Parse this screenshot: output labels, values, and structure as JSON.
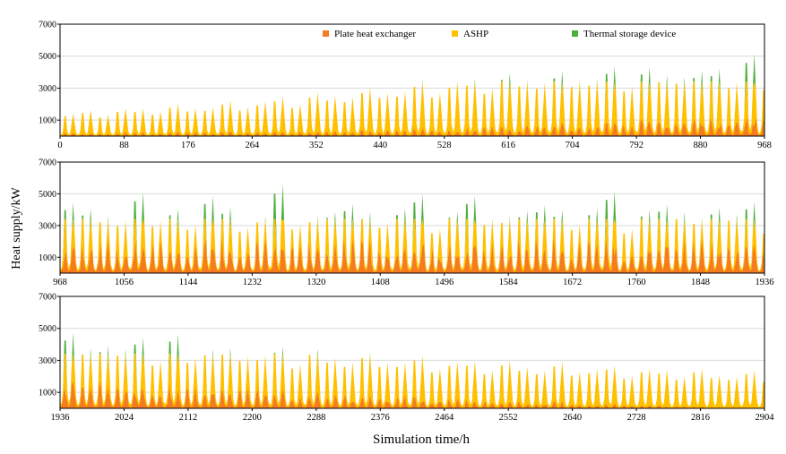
{
  "figure": {
    "ylabel": "Heat supply/kW",
    "xlabel": "Simulation time/h"
  },
  "legend": [
    {
      "label": "Plate heat exchanger",
      "color": "#f47b20"
    },
    {
      "label": "ASHP",
      "color": "#ffc000"
    },
    {
      "label": "Thermal storage device",
      "color": "#4caf3a"
    }
  ],
  "chart_data": [
    {
      "type": "area",
      "stacked": true,
      "grid": "horizontal",
      "legend_position": "top-right",
      "xlim": [
        0,
        968
      ],
      "ylim": [
        0,
        7000
      ],
      "xticks": [
        0,
        88,
        176,
        264,
        352,
        440,
        528,
        616,
        704,
        792,
        880,
        968
      ],
      "yticks": [
        1000,
        3000,
        5000,
        7000
      ],
      "day_length_h": 24,
      "series": [
        {
          "name": "Plate heat exchanger",
          "level": "low"
        },
        {
          "name": "ASHP",
          "cap": 3400,
          "daily_peak_start": 1600,
          "daily_peak_end": 3400
        },
        {
          "name": "Thermal storage device",
          "daily_peak_start": 0,
          "daily_peak_end": 2300
        }
      ]
    },
    {
      "type": "area",
      "stacked": true,
      "grid": "horizontal",
      "xlim": [
        968,
        1936
      ],
      "ylim": [
        0,
        7000
      ],
      "xticks": [
        968,
        1056,
        1144,
        1232,
        1320,
        1408,
        1496,
        1584,
        1672,
        1760,
        1848,
        1936
      ],
      "yticks": [
        1000,
        3000,
        5000,
        7000
      ],
      "day_length_h": 24,
      "series": [
        {
          "name": "Plate heat exchanger",
          "level": "high"
        },
        {
          "name": "ASHP",
          "cap": 3400
        },
        {
          "name": "Thermal storage device",
          "daily_peak_min": 500,
          "daily_peak_max": 3300
        }
      ]
    },
    {
      "type": "area",
      "stacked": true,
      "grid": "horizontal",
      "xlim": [
        1936,
        2904
      ],
      "ylim": [
        0,
        7000
      ],
      "xticks": [
        1936,
        2024,
        2112,
        2200,
        2288,
        2376,
        2464,
        2552,
        2640,
        2728,
        2816,
        2904
      ],
      "yticks": [
        1000,
        3000,
        5000,
        7000
      ],
      "day_length_h": 24,
      "series": [
        {
          "name": "Plate heat exchanger",
          "level": "medium-decreasing"
        },
        {
          "name": "ASHP",
          "cap": 3400,
          "daily_peak_start": 3400,
          "daily_peak_end": 2400
        },
        {
          "name": "Thermal storage device",
          "daily_peak_start": 2300,
          "daily_peak_end": 0
        }
      ]
    }
  ],
  "colors": {
    "phe": "#f47b20",
    "ashp": "#ffc000",
    "tsd": "#4caf3a",
    "grid": "#d9d9d9",
    "axis": "#000000"
  }
}
